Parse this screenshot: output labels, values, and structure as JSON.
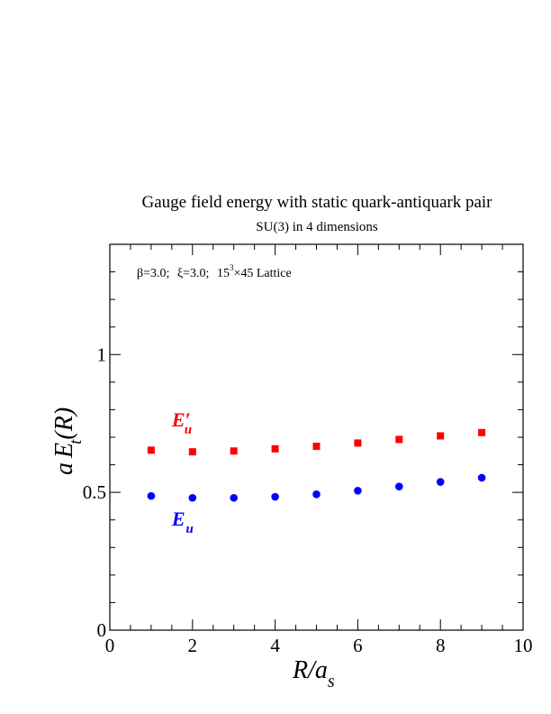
{
  "chart_data": {
    "type": "scatter",
    "title": "Gauge field energy with static quark-antiquark pair",
    "subtitle": "SU(3) in 4 dimensions",
    "annotation": {
      "beta": "β=3.0;",
      "xi": "ξ=3.0;",
      "lattice_base": "15",
      "lattice_exp": "3",
      "lattice_rest": "×45 Lattice"
    },
    "xlabel": {
      "main": "R/a",
      "sub": "s"
    },
    "ylabel": {
      "a": "a",
      "E": "E",
      "sub": "t",
      "arg": "(R)"
    },
    "xlim": [
      0,
      10
    ],
    "ylim": [
      0,
      1.4
    ],
    "x_ticks": [
      0,
      2,
      4,
      6,
      8,
      10
    ],
    "x_tick_labels": [
      "0",
      "2",
      "4",
      "6",
      "8",
      "10"
    ],
    "y_ticks": [
      0,
      0.5,
      1
    ],
    "y_tick_labels": [
      "0",
      "0.5",
      "1"
    ],
    "x_minor_step": 0.5,
    "y_minor_step": 0.1,
    "grid": false,
    "series": [
      {
        "label_main": "E",
        "label_prime": "′",
        "label_sub": "u",
        "label_x": 1.5,
        "label_y": 0.74,
        "color": "#ff0000",
        "marker": "square",
        "x": [
          1,
          2,
          3,
          4,
          5,
          6,
          7,
          8,
          9
        ],
        "y": [
          0.653,
          0.647,
          0.65,
          0.658,
          0.667,
          0.679,
          0.692,
          0.705,
          0.717
        ]
      },
      {
        "label_main": "E",
        "label_prime": "",
        "label_sub": "u",
        "label_x": 1.5,
        "label_y": 0.38,
        "color": "#0000ff",
        "marker": "circle",
        "x": [
          1,
          2,
          3,
          4,
          5,
          6,
          7,
          8,
          9
        ],
        "y": [
          0.487,
          0.48,
          0.48,
          0.484,
          0.493,
          0.506,
          0.521,
          0.538,
          0.553
        ]
      }
    ]
  }
}
